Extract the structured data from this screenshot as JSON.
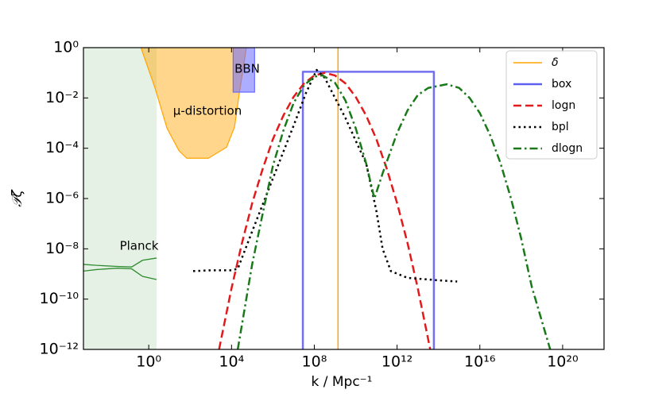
{
  "chart_data": {
    "type": "line",
    "xscale": "log",
    "yscale": "log",
    "xlabel": "k / Mpc⁻¹",
    "ylabel": "𝒫ζ",
    "xlim": [
      0.0007,
      1e+22
    ],
    "ylim": [
      1e-12,
      1
    ],
    "xticks": [
      {
        "value": 1,
        "label": "10⁰"
      },
      {
        "value": 10000.0,
        "label": "10⁴"
      },
      {
        "value": 100000000.0,
        "label": "10⁸"
      },
      {
        "value": 1000000000000.0,
        "label": "10¹²"
      },
      {
        "value": 1e+16,
        "label": "10¹⁶"
      },
      {
        "value": 1e+20,
        "label": "10²⁰"
      }
    ],
    "yticks": [
      {
        "value": 1,
        "label": "10⁰"
      },
      {
        "value": 0.01,
        "label": "10⁻²"
      },
      {
        "value": 0.0001,
        "label": "10⁻⁴"
      },
      {
        "value": 1e-06,
        "label": "10⁻⁶"
      },
      {
        "value": 1e-08,
        "label": "10⁻⁸"
      },
      {
        "value": 1e-10,
        "label": "10⁻¹⁰"
      },
      {
        "value": 1e-12,
        "label": "10⁻¹²"
      }
    ],
    "legend": "upper right",
    "regions": [
      {
        "name": "Planck",
        "color": "#2e8b2e",
        "alpha": 0.12,
        "x": [
          0.0007,
          2.4,
          2.4,
          0.0007
        ],
        "values": [
          1e-12,
          1e-12,
          1,
          1
        ]
      },
      {
        "name": "μ-distortion",
        "color": "#ffa500",
        "alpha": 0.45,
        "x": [
          0.42,
          2,
          7.6,
          29,
          69,
          760,
          5800,
          14000,
          26000,
          52000
        ],
        "values": [
          1,
          0.025,
          0.00063,
          7.9e-05,
          4e-05,
          4e-05,
          0.00011,
          0.0007,
          0.025,
          1
        ]
      },
      {
        "name": "BBN",
        "color": "#6a6aff",
        "alpha": 0.55,
        "x": [
          12000,
          130000,
          130000,
          12000
        ],
        "values": [
          0.017,
          0.017,
          1,
          1
        ]
      }
    ],
    "constraint_lines": [
      {
        "color": "#2e8b2e",
        "x": [
          0.0007,
          0.003,
          0.03,
          0.15,
          0.5,
          2.4
        ],
        "values": [
          2.4e-09,
          2.2e-09,
          2e-09,
          1.9e-09,
          3.5e-09,
          4.3e-09
        ]
      },
      {
        "color": "#2e8b2e",
        "x": [
          0.0007,
          0.003,
          0.03,
          0.15,
          0.5,
          2.4
        ],
        "values": [
          1.3e-09,
          1.5e-09,
          1.7e-09,
          1.6e-09,
          8e-10,
          6e-10
        ]
      }
    ],
    "series": [
      {
        "name": "δ",
        "color": "#ffa500",
        "width": 1.5,
        "dash": "solid",
        "x": [
          1400000000.0,
          1400000000.0
        ],
        "values": [
          1e-12,
          1
        ]
      },
      {
        "name": "box",
        "color": "#6060f0",
        "width": 2.5,
        "dash": "solid",
        "x": [
          28000000.0,
          28000000.0,
          60000000000000.0,
          60000000000000.0
        ],
        "values": [
          1e-12,
          0.11,
          0.11,
          1e-12
        ]
      },
      {
        "name": "logn",
        "color": "#e31a1c",
        "width": 2.5,
        "dash": "dashed",
        "x": [
          2500,
          10000.0,
          32000.0,
          100000.0,
          320000.0,
          1000000.0,
          3200000.0,
          10000000.0,
          32000000.0,
          100000000.0,
          320000000.0,
          1000000000.0,
          3200000000.0,
          10000000000.0,
          32000000000.0,
          100000000000.0,
          320000000000.0,
          1000000000000.0,
          3200000000000.0,
          10000000000000.0,
          40000000000000.0
        ],
        "values": [
          1e-12,
          2.7e-10,
          1.7e-08,
          6.6e-07,
          1.5e-05,
          0.00023,
          0.002,
          0.011,
          0.038,
          0.078,
          0.1,
          0.078,
          0.038,
          0.011,
          0.002,
          0.00023,
          1.5e-05,
          6.6e-07,
          1.7e-08,
          2.7e-10,
          1e-12
        ]
      },
      {
        "name": "bpl",
        "color": "#000000",
        "width": 2.5,
        "dash": "dotted",
        "x": [
          140,
          1000,
          10000.0,
          20000.0,
          100000.0,
          1000000.0,
          10000000.0,
          40000000.0,
          130000000.0,
          320000000.0,
          1000000000.0,
          3200000000.0,
          10000000000.0,
          32000000000.0,
          100000000000.0,
          200000000000.0,
          500000000000.0,
          3200000000000.0,
          100000000000000.0,
          800000000000000.0
        ],
        "values": [
          1.3e-09,
          1.4e-09,
          1.4e-09,
          1.6e-09,
          5e-08,
          6.3e-06,
          0.00079,
          0.016,
          0.13,
          0.063,
          0.01,
          0.0016,
          0.0002,
          2.5e-05,
          3.2e-07,
          1e-08,
          1.3e-09,
          7e-10,
          5.6e-10,
          5e-10
        ]
      },
      {
        "name": "dlogn",
        "color": "#1a7a1a",
        "width": 2.5,
        "dash": "dashdot",
        "x": [
          20000.0,
          100000.0,
          320000.0,
          1000000.0,
          3200000.0,
          10000000.0,
          32000000.0,
          100000000.0,
          250000000.0,
          1000000000.0,
          3200000000.0,
          10000000000.0,
          32000000000.0,
          80000000000.0,
          200000000000.0,
          1000000000000.0,
          3200000000000.0,
          10000000000000.0,
          32000000000000.0,
          250000000000000.0,
          1000000000000000.0,
          3200000000000000.0,
          1e+16,
          3.2e+16,
          1e+17,
          3.2e+17,
          1e+18,
          3.2e+18,
          2.5e+19
        ],
        "values": [
          1e-12,
          2.5e-09,
          2.5e-07,
          2e-05,
          0.0005,
          0.0063,
          0.032,
          0.07,
          0.079,
          0.04,
          0.0079,
          0.00063,
          2.5e-05,
          1e-06,
          1e-05,
          0.0004,
          0.0032,
          0.013,
          0.025,
          0.035,
          0.025,
          0.01,
          0.0025,
          0.00032,
          2.5e-05,
          1e-06,
          2.5e-08,
          3.2e-10,
          1e-12
        ]
      }
    ]
  }
}
